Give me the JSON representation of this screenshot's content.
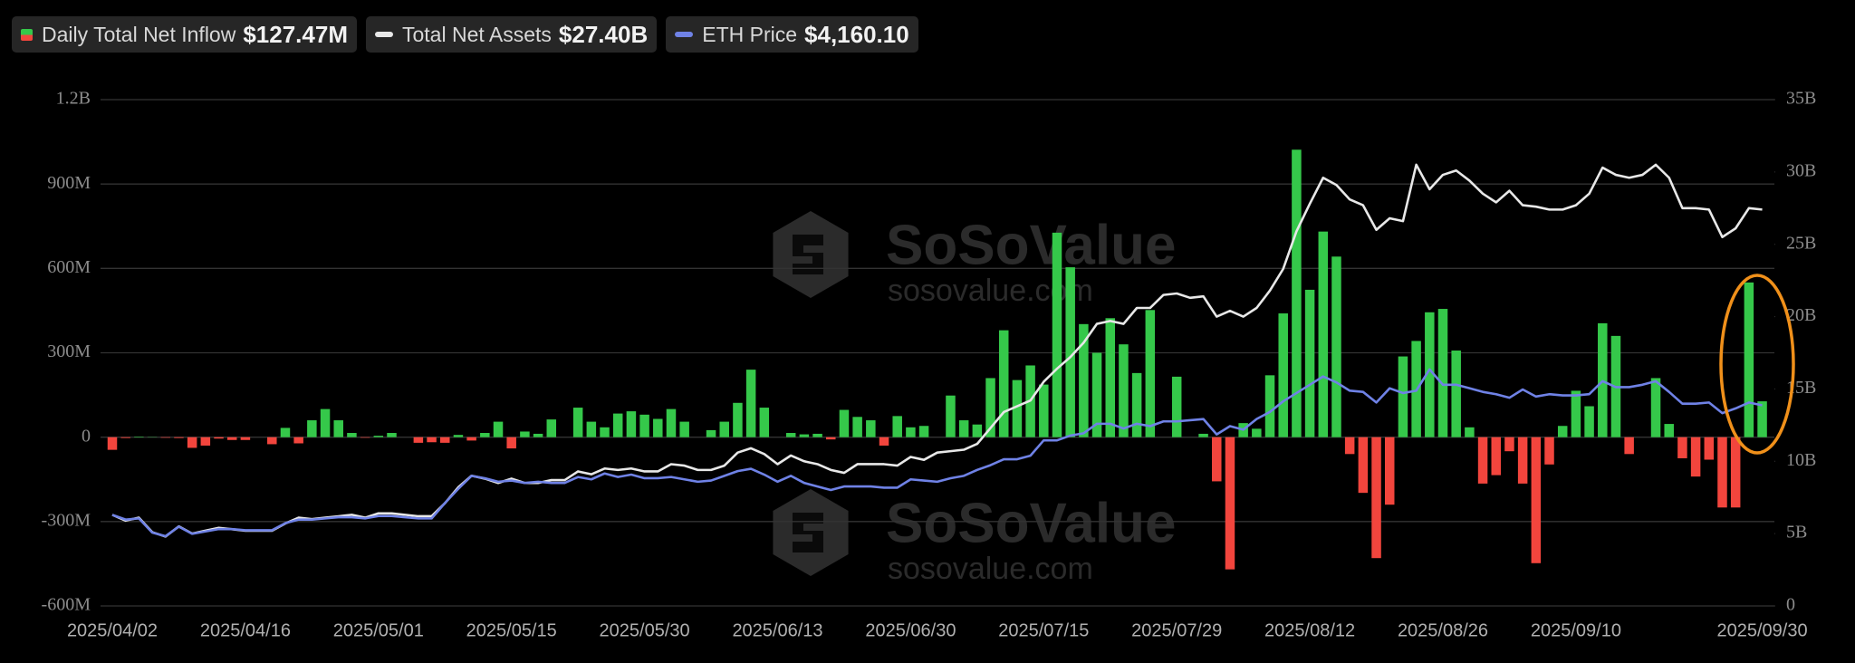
{
  "chart_data": {
    "type": "combo",
    "categories": [
      "2025/04/02",
      null,
      null,
      null,
      null,
      null,
      null,
      null,
      null,
      null,
      "2025/04/16",
      null,
      null,
      null,
      null,
      null,
      null,
      null,
      null,
      null,
      "2025/05/01",
      null,
      null,
      null,
      null,
      null,
      null,
      null,
      null,
      null,
      "2025/05/15",
      null,
      null,
      null,
      null,
      null,
      null,
      null,
      null,
      null,
      "2025/05/30",
      null,
      null,
      null,
      null,
      null,
      null,
      null,
      null,
      null,
      "2025/06/13",
      null,
      null,
      null,
      null,
      null,
      null,
      null,
      null,
      null,
      "2025/06/30",
      null,
      null,
      null,
      null,
      null,
      null,
      null,
      null,
      null,
      "2025/07/15",
      null,
      null,
      null,
      null,
      null,
      null,
      null,
      null,
      null,
      "2025/07/29",
      null,
      null,
      null,
      null,
      null,
      null,
      null,
      null,
      null,
      "2025/08/12",
      null,
      null,
      null,
      null,
      null,
      null,
      null,
      null,
      null,
      "2025/08/26",
      null,
      null,
      null,
      null,
      null,
      null,
      null,
      null,
      null,
      "2025/09/10",
      null,
      null,
      null,
      null,
      null,
      null,
      null,
      null,
      null,
      null,
      null,
      null,
      null,
      "2025/09/30"
    ],
    "series": [
      {
        "name": "Daily Total Net Inflow",
        "latest": "$127.47M",
        "type": "bar",
        "axis": "y",
        "color": "#35c84a",
        "negative_color": "#f2453d",
        "values": [
          -45,
          -3,
          2,
          1,
          -2,
          -3,
          -38,
          -30,
          -5,
          -10,
          -10,
          0,
          -25,
          33,
          -22,
          60,
          100,
          60,
          15,
          -2,
          5,
          15,
          0,
          -20,
          -18,
          -20,
          8,
          -12,
          15,
          55,
          -40,
          20,
          12,
          63,
          0,
          105,
          55,
          35,
          84,
          92,
          80,
          65,
          100,
          55,
          0,
          25,
          55,
          122,
          240,
          105,
          0,
          15,
          10,
          12,
          -8,
          97,
          72,
          60,
          -30,
          75,
          35,
          40,
          0,
          148,
          60,
          45,
          210,
          380,
          203,
          255,
          187,
          727,
          604,
          402,
          300,
          423,
          330,
          228,
          452,
          0,
          215,
          0,
          12,
          -157,
          -470,
          50,
          30,
          220,
          440,
          1022,
          524,
          731,
          642,
          -60,
          -198,
          -430,
          -240,
          287,
          342,
          444,
          456,
          308,
          35,
          -165,
          -135,
          -50,
          -165,
          -448,
          -97,
          40,
          165,
          110,
          405,
          360,
          -60,
          0,
          210,
          47,
          -75,
          -140,
          -80,
          -250,
          -250,
          550,
          127.47
        ]
      },
      {
        "name": "Total Net Assets",
        "latest": "$27.40B",
        "type": "line",
        "axis": "y2",
        "color": "#e8e8e8",
        "values": [
          6.3,
          5.9,
          6.1,
          5.1,
          4.8,
          5.5,
          5.0,
          5.2,
          5.4,
          5.3,
          5.2,
          5.2,
          5.2,
          5.7,
          6.1,
          6.0,
          6.1,
          6.2,
          6.3,
          6.1,
          6.4,
          6.4,
          6.3,
          6.2,
          6.2,
          7.1,
          8.2,
          9.0,
          8.8,
          8.5,
          8.8,
          8.5,
          8.5,
          8.7,
          8.7,
          9.3,
          9.1,
          9.5,
          9.4,
          9.5,
          9.3,
          9.3,
          9.8,
          9.7,
          9.4,
          9.4,
          9.7,
          10.6,
          10.9,
          10.5,
          9.8,
          10.4,
          10.0,
          9.8,
          9.4,
          9.2,
          9.8,
          9.8,
          9.8,
          9.7,
          10.3,
          10.1,
          10.6,
          10.7,
          10.8,
          11.2,
          12.3,
          13.4,
          13.8,
          14.2,
          15.5,
          16.4,
          17.2,
          18.2,
          19.5,
          19.7,
          19.5,
          20.6,
          20.6,
          21.5,
          21.6,
          21.3,
          21.4,
          20.0,
          20.4,
          20.0,
          20.6,
          21.8,
          23.3,
          25.9,
          27.8,
          29.6,
          29.1,
          28.1,
          27.7,
          26.0,
          26.8,
          26.6,
          30.5,
          28.8,
          29.8,
          30.1,
          29.4,
          28.5,
          27.9,
          28.7,
          27.7,
          27.6,
          27.4,
          27.4,
          27.7,
          28.5,
          30.3,
          29.8,
          29.6,
          29.8,
          30.5,
          29.6,
          27.5,
          27.5,
          27.4,
          25.5,
          26.1,
          27.5,
          27.4
        ]
      },
      {
        "name": "ETH Price",
        "latest": "$4,160.10",
        "type": "line",
        "axis": "y3",
        "color": "#6f82e6",
        "values": [
          1889,
          1791,
          1815,
          1521,
          1447,
          1644,
          1496,
          1545,
          1594,
          1594,
          1570,
          1570,
          1570,
          1717,
          1791,
          1791,
          1815,
          1840,
          1840,
          1815,
          1864,
          1864,
          1840,
          1815,
          1815,
          2134,
          2428,
          2698,
          2649,
          2576,
          2600,
          2551,
          2576,
          2551,
          2551,
          2674,
          2625,
          2747,
          2674,
          2723,
          2649,
          2649,
          2674,
          2625,
          2576,
          2600,
          2698,
          2796,
          2845,
          2723,
          2576,
          2698,
          2551,
          2478,
          2404,
          2478,
          2478,
          2478,
          2453,
          2453,
          2625,
          2600,
          2576,
          2649,
          2698,
          2821,
          2919,
          3042,
          3042,
          3115,
          3434,
          3434,
          3532,
          3581,
          3778,
          3778,
          3680,
          3778,
          3729,
          3827,
          3827,
          3851,
          3876,
          3557,
          3729,
          3655,
          3876,
          4023,
          4244,
          4415,
          4587,
          4759,
          4636,
          4464,
          4439,
          4219,
          4514,
          4415,
          4464,
          4906,
          4587,
          4587,
          4514,
          4439,
          4391,
          4317,
          4489,
          4342,
          4391,
          4366,
          4366,
          4391,
          4661,
          4538,
          4538,
          4587,
          4661,
          4439,
          4195,
          4195,
          4219,
          3998,
          4097,
          4219,
          4160.1
        ]
      }
    ],
    "ylim": [
      -600,
      1200
    ],
    "yticks": [
      {
        "value": -600,
        "label": "-600M"
      },
      {
        "value": -300,
        "label": "-300M"
      },
      0,
      {
        "value": 300,
        "label": "300M"
      },
      {
        "value": 600,
        "label": "600M"
      },
      {
        "value": 900,
        "label": "900M"
      },
      {
        "value": 1200,
        "label": "1.2B"
      }
    ],
    "y2lim": [
      0,
      35
    ],
    "y2ticks": [
      0,
      {
        "value": 5,
        "label": "5B"
      },
      {
        "value": 10,
        "label": "10B"
      },
      {
        "value": 15,
        "label": "15B"
      },
      {
        "value": 20,
        "label": "20B"
      },
      {
        "value": 25,
        "label": "25B"
      },
      {
        "value": 30,
        "label": "30B"
      },
      {
        "value": 35,
        "label": "35B"
      }
    ],
    "y3lim": [
      0,
      10500
    ],
    "grid": true,
    "legend_position": "top-left",
    "watermark": {
      "name": "SoSoValue",
      "url": "sosovalue.com"
    }
  }
}
